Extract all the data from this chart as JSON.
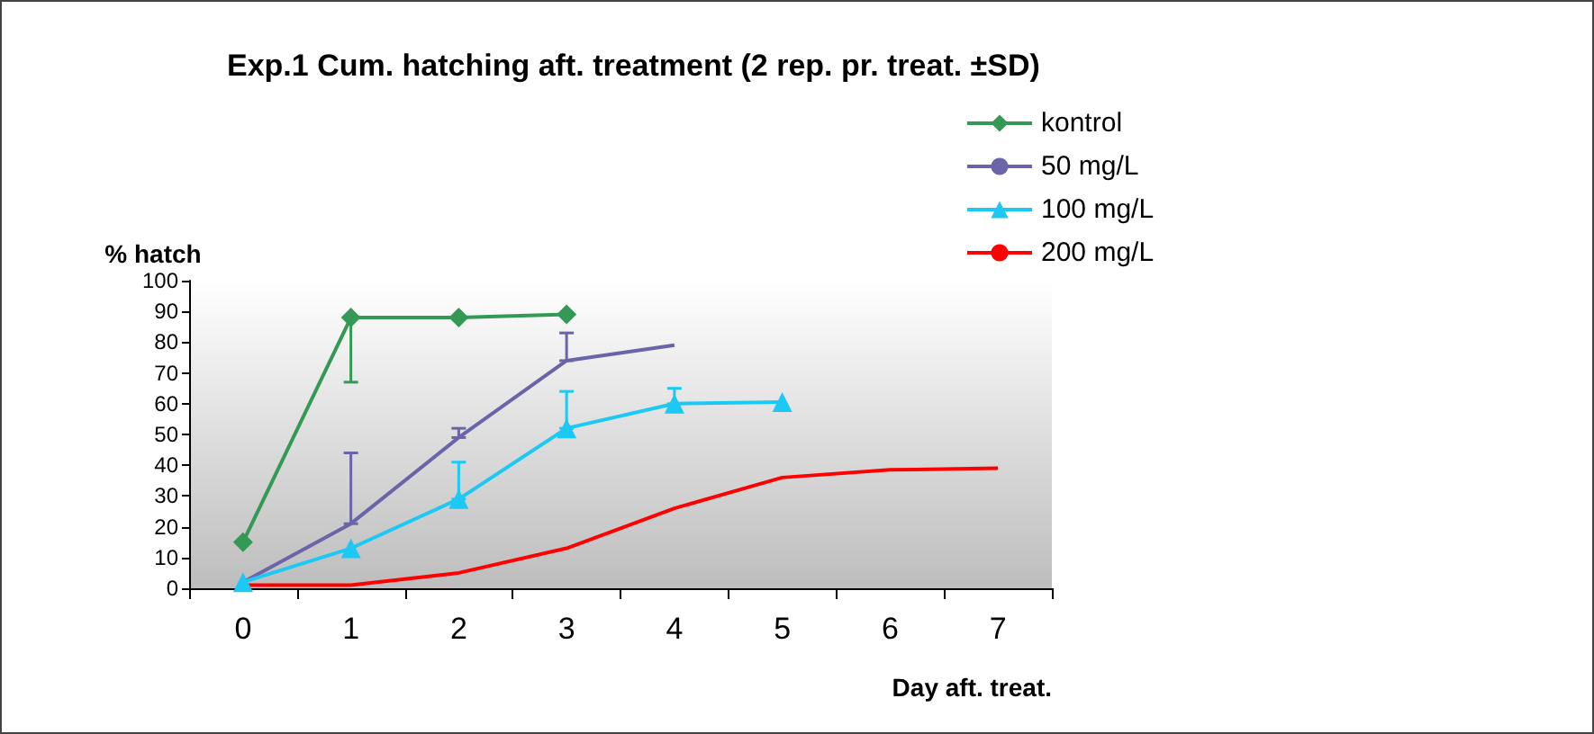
{
  "chart_data": {
    "type": "line",
    "title": "Exp.1 Cum. hatching aft. treatment (2 rep. pr. treat. ±SD)",
    "xlabel": "Day aft. treat.",
    "ylabel": "% hatch",
    "categories": [
      "0",
      "1",
      "2",
      "3",
      "4",
      "5",
      "6",
      "7"
    ],
    "ylim": [
      0,
      100
    ],
    "yticks": [
      0,
      10,
      20,
      30,
      40,
      50,
      60,
      70,
      80,
      90,
      100
    ],
    "grid": false,
    "legend": "top right",
    "series": [
      {
        "name": "kontrol",
        "color": "#339955",
        "marker": "diamond",
        "values": [
          15,
          88,
          88,
          89,
          null,
          null,
          null,
          null
        ],
        "errors": [
          null,
          [
            67,
            88
          ],
          null,
          null,
          null,
          null,
          null,
          null
        ]
      },
      {
        "name": "50 mg/L",
        "color": "#6a64a8",
        "marker": "none",
        "values": [
          2,
          21,
          49,
          74,
          79,
          null,
          null,
          null
        ],
        "errors": [
          null,
          [
            21,
            44
          ],
          [
            49,
            52
          ],
          [
            74,
            83
          ],
          null,
          null,
          null,
          null
        ]
      },
      {
        "name": "100 mg/L",
        "color": "#1cc8f4",
        "marker": "triangle",
        "values": [
          2,
          13,
          29,
          52,
          60,
          60.5,
          null,
          null
        ],
        "errors": [
          null,
          null,
          [
            29,
            41
          ],
          [
            52,
            64
          ],
          [
            60,
            65
          ],
          null,
          null,
          null
        ]
      },
      {
        "name": "200 mg/L",
        "color": "#ff0000",
        "marker": "none",
        "values": [
          1,
          1,
          5,
          13,
          26,
          36,
          38.5,
          39
        ]
      }
    ]
  }
}
